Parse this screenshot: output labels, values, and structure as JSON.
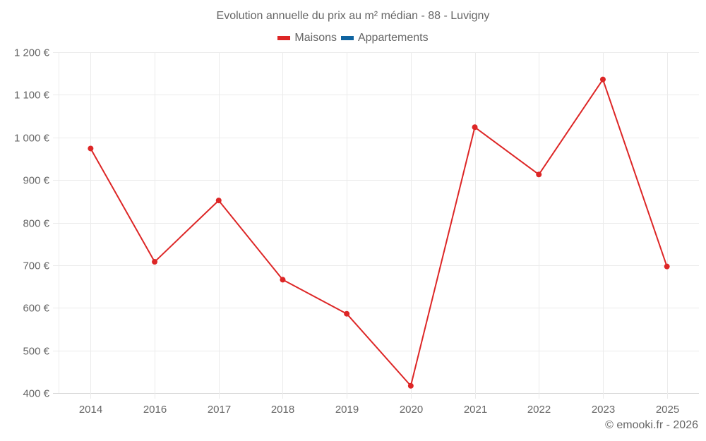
{
  "title": "Evolution annuelle du prix au m² médian - 88 - Luvigny",
  "legend": [
    {
      "label": "Maisons",
      "color": "#dd2626"
    },
    {
      "label": "Appartements",
      "color": "#0f64a0"
    }
  ],
  "credit": "© emooki.fr - 2026",
  "y_tick_labels": [
    "1 200 €",
    "1 100 €",
    "1 000 €",
    "900 €",
    "800 €",
    "700 €",
    "600 €",
    "500 €",
    "400 €"
  ],
  "chart_data": {
    "type": "line",
    "title": "Evolution annuelle du prix au m² médian - 88 - Luvigny",
    "xlabel": "",
    "ylabel": "",
    "categories": [
      "2014",
      "2016",
      "2017",
      "2018",
      "2019",
      "2020",
      "2021",
      "2022",
      "2023",
      "2025"
    ],
    "series": [
      {
        "name": "Maisons",
        "color": "#dd2626",
        "values": [
          974,
          708,
          852,
          666,
          586,
          417,
          1024,
          913,
          1136,
          697
        ]
      },
      {
        "name": "Appartements",
        "color": "#0f64a0",
        "values": []
      }
    ],
    "ylim": [
      400,
      1200
    ],
    "y_ticks": [
      400,
      500,
      600,
      700,
      800,
      900,
      1000,
      1100,
      1200
    ],
    "grid": true,
    "legend_position": "top"
  }
}
